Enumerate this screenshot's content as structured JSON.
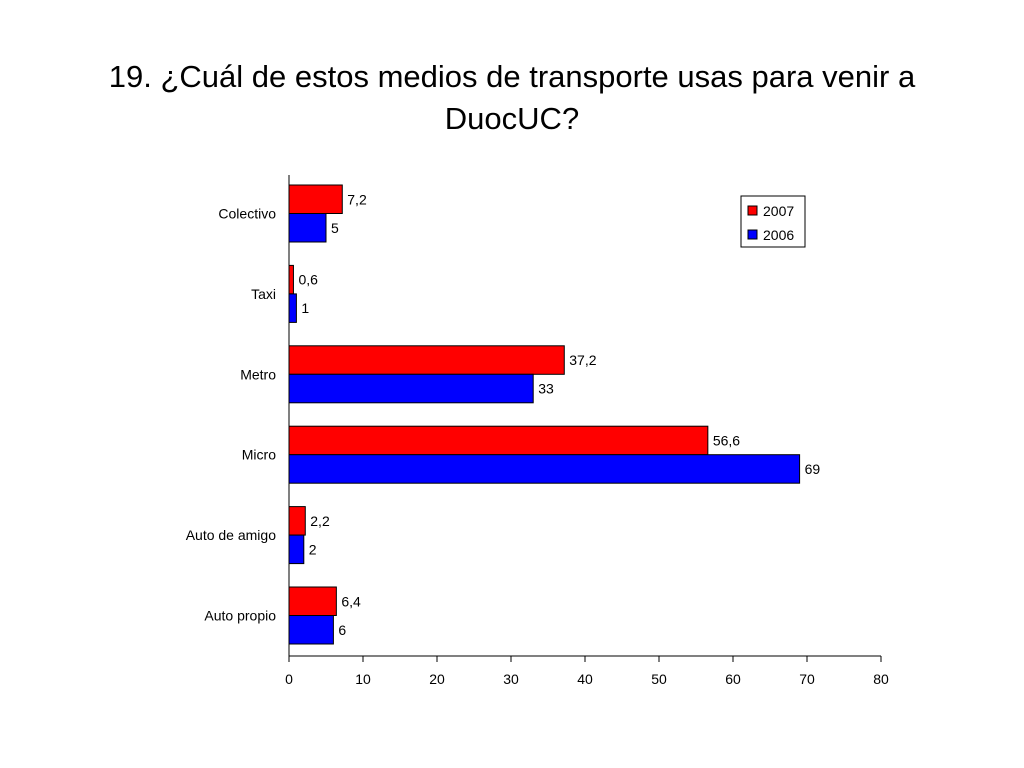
{
  "title_lines": [
    "19. ¿Cuál de estos medios de transporte usas para venir a",
    "DuocUC?"
  ],
  "chart_data": {
    "type": "bar",
    "orientation": "horizontal",
    "title": "19. ¿Cuál de estos medios de transporte usas para venir a DuocUC?",
    "categories": [
      "Colectivo",
      "Taxi",
      "Metro",
      "Micro",
      "Auto de amigo",
      "Auto propio"
    ],
    "series": [
      {
        "name": "2007",
        "color": "#ff0000",
        "values": [
          7.2,
          0.6,
          37.2,
          56.6,
          2.2,
          6.4
        ],
        "labels": [
          "7,2",
          "0,6",
          "37,2",
          "56,6",
          "2,2",
          "6,4"
        ]
      },
      {
        "name": "2006",
        "color": "#0000ff",
        "values": [
          5,
          1,
          33,
          69,
          2,
          6
        ],
        "labels": [
          "5",
          "1",
          "33",
          "69",
          "2",
          "6"
        ]
      }
    ],
    "xlim": [
      0,
      80
    ],
    "xticks": [
      0,
      10,
      20,
      30,
      40,
      50,
      60,
      70,
      80
    ],
    "xlabel": "",
    "ylabel": "",
    "grid": false,
    "legend_position": "top-right"
  }
}
